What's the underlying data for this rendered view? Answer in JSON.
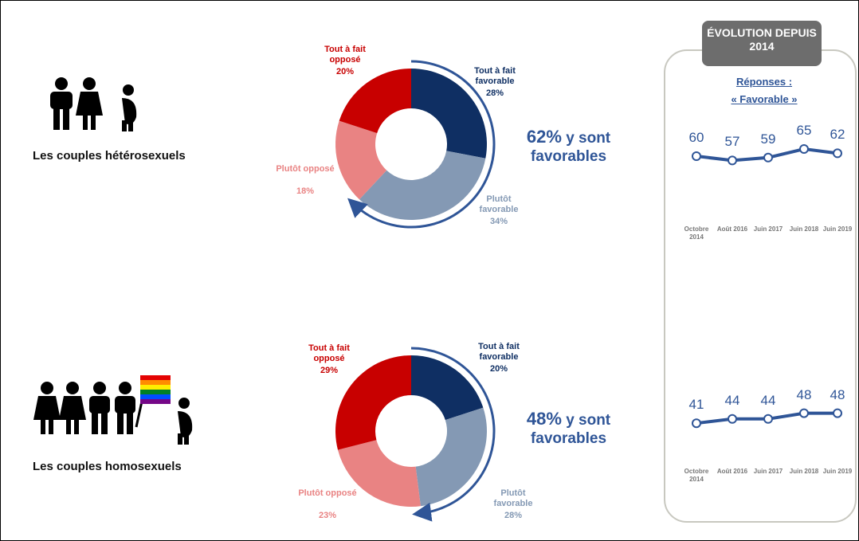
{
  "evolution_panel": {
    "title": "ÉVOLUTION DEPUIS 2014",
    "subtitle": [
      "Réponses :",
      "« Favorable »"
    ]
  },
  "chart_data": [
    {
      "type": "pie",
      "title": "Les couples hétérosexuels",
      "categories": [
        "Tout à fait favorable",
        "Plutôt favorable",
        "Plutôt opposé",
        "Tout à fait opposé"
      ],
      "values": [
        28,
        34,
        18,
        20
      ],
      "value_labels": [
        "28%",
        "34%",
        "18%",
        "20%"
      ],
      "colors": [
        "#0f2f63",
        "#8499b4",
        "#e98383",
        "#c80000"
      ],
      "annotation_value": "62%",
      "annotation_text": "y sont favorables"
    },
    {
      "type": "line",
      "categories": [
        "Octobre 2014",
        "Août 2016",
        "Juin 2017",
        "Juin 2018",
        "Juin 2019"
      ],
      "values": [
        60,
        57,
        59,
        65,
        62
      ],
      "color": "#2f5597",
      "ylim": [
        0,
        100
      ]
    },
    {
      "type": "pie",
      "title": "Les couples homosexuels",
      "categories": [
        "Tout à fait favorable",
        "Plutôt favorable",
        "Plutôt opposé",
        "Tout à fait opposé"
      ],
      "values": [
        20,
        28,
        23,
        29
      ],
      "value_labels": [
        "20%",
        "28%",
        "23%",
        "29%"
      ],
      "colors": [
        "#0f2f63",
        "#8499b4",
        "#e98383",
        "#c80000"
      ],
      "annotation_value": "48%",
      "annotation_text": "y sont favorables"
    },
    {
      "type": "line",
      "categories": [
        "Octobre 2014",
        "Août 2016",
        "Juin 2017",
        "Juin 2018",
        "Juin 2019"
      ],
      "values": [
        41,
        44,
        44,
        48,
        48
      ],
      "color": "#2f5597",
      "ylim": [
        0,
        100
      ]
    }
  ]
}
